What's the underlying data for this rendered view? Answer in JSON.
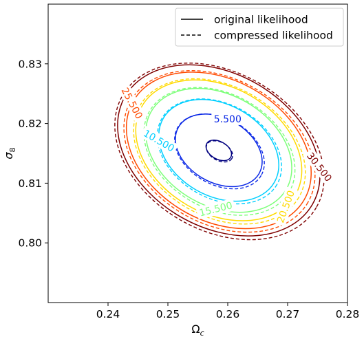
{
  "chart_data": {
    "type": "contour",
    "xlabel": "Ω",
    "xlabel_sub": "c",
    "ylabel": "σ",
    "ylabel_sub": "8",
    "xlim": [
      0.23,
      0.28
    ],
    "ylim": [
      0.79,
      0.84
    ],
    "xticks": [
      0.24,
      0.25,
      0.26,
      0.27,
      0.28
    ],
    "xtick_labels": [
      "0.24",
      "0.25",
      "0.26",
      "0.27",
      "0.28"
    ],
    "yticks": [
      0.8,
      0.81,
      0.82,
      0.83
    ],
    "ytick_labels": [
      "0.80",
      "0.81",
      "0.82",
      "0.83"
    ],
    "grid": false,
    "legend": {
      "placement": "top-right",
      "entries": [
        {
          "label": "original likelihood",
          "linestyle": "solid"
        },
        {
          "label": "compressed likelihood",
          "linestyle": "dashed"
        }
      ]
    },
    "center": {
      "x": 0.2585,
      "y": 0.8155
    },
    "contour_levels": [
      {
        "level": 0.5,
        "label": "",
        "color": "#00007f",
        "rx": 0.0022,
        "ry": 0.0015
      },
      {
        "level": 5.5,
        "label": "5.500",
        "color": "#0a28e6",
        "rx": 0.0074,
        "ry": 0.0055
      },
      {
        "level": 10.5,
        "label": "10.500",
        "color": "#00cfff",
        "rx": 0.0102,
        "ry": 0.0078
      },
      {
        "level": 15.5,
        "label": "15.500",
        "color": "#7dff7a",
        "rx": 0.0124,
        "ry": 0.0095
      },
      {
        "level": 20.5,
        "label": "20.500",
        "color": "#ffda00",
        "rx": 0.0141,
        "ry": 0.0108
      },
      {
        "level": 25.5,
        "label": "25.500",
        "color": "#ff4a00",
        "rx": 0.0157,
        "ry": 0.012
      },
      {
        "level": 30.5,
        "label": "30.500",
        "color": "#7f0000",
        "rx": 0.0172,
        "ry": 0.0131
      }
    ],
    "tilt_deg": 30
  }
}
